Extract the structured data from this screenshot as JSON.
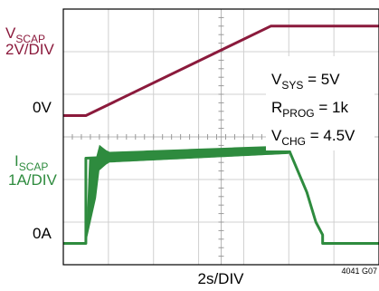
{
  "chart_data": {
    "type": "line",
    "grid": "on",
    "grid_divisions": {
      "x": 7,
      "y": 6
    },
    "xlabel": "2s/DIV",
    "figure_id": "4041 G07",
    "traces": [
      {
        "label_main": "V",
        "label_sub": "SCAP",
        "scale": "2V/DIV",
        "ground_label": "0V",
        "ground_div": 3.5,
        "color": "#8b1a3c",
        "unit_per_div": 2,
        "x_div": [
          0,
          0.5,
          4.6,
          6.5,
          7
        ],
        "y_div": [
          0,
          0,
          2.1,
          2.1,
          2.1
        ]
      },
      {
        "label_main": "I",
        "label_sub": "SCAP",
        "scale": "1A/DIV",
        "ground_label": "0A",
        "ground_div": 0.5,
        "color": "#2e8b3e",
        "unit_per_div": 1,
        "x_div": [
          0,
          0.5,
          0.5,
          5.0,
          5.4,
          5.6,
          5.75,
          5.75,
          7
        ],
        "y_div": [
          0,
          0,
          2.0,
          2.2,
          1.2,
          0.5,
          0.2,
          0,
          0
        ],
        "band": {
          "x_div": [
            0.5,
            0.8,
            1.0,
            5.0
          ],
          "height_div": [
            2.0,
            0.6,
            0.25,
            0.2
          ]
        }
      }
    ],
    "annotations": [
      {
        "main": "V",
        "sub": "SYS",
        "rest": " = 5V"
      },
      {
        "main": "R",
        "sub": "PROG",
        "rest": " = 1k"
      },
      {
        "main": "V",
        "sub": "CHG",
        "rest": " = 4.5V"
      }
    ],
    "colors": {
      "grid": "#d0d0d0",
      "frame": "#000000",
      "background": "#ffffff"
    }
  }
}
